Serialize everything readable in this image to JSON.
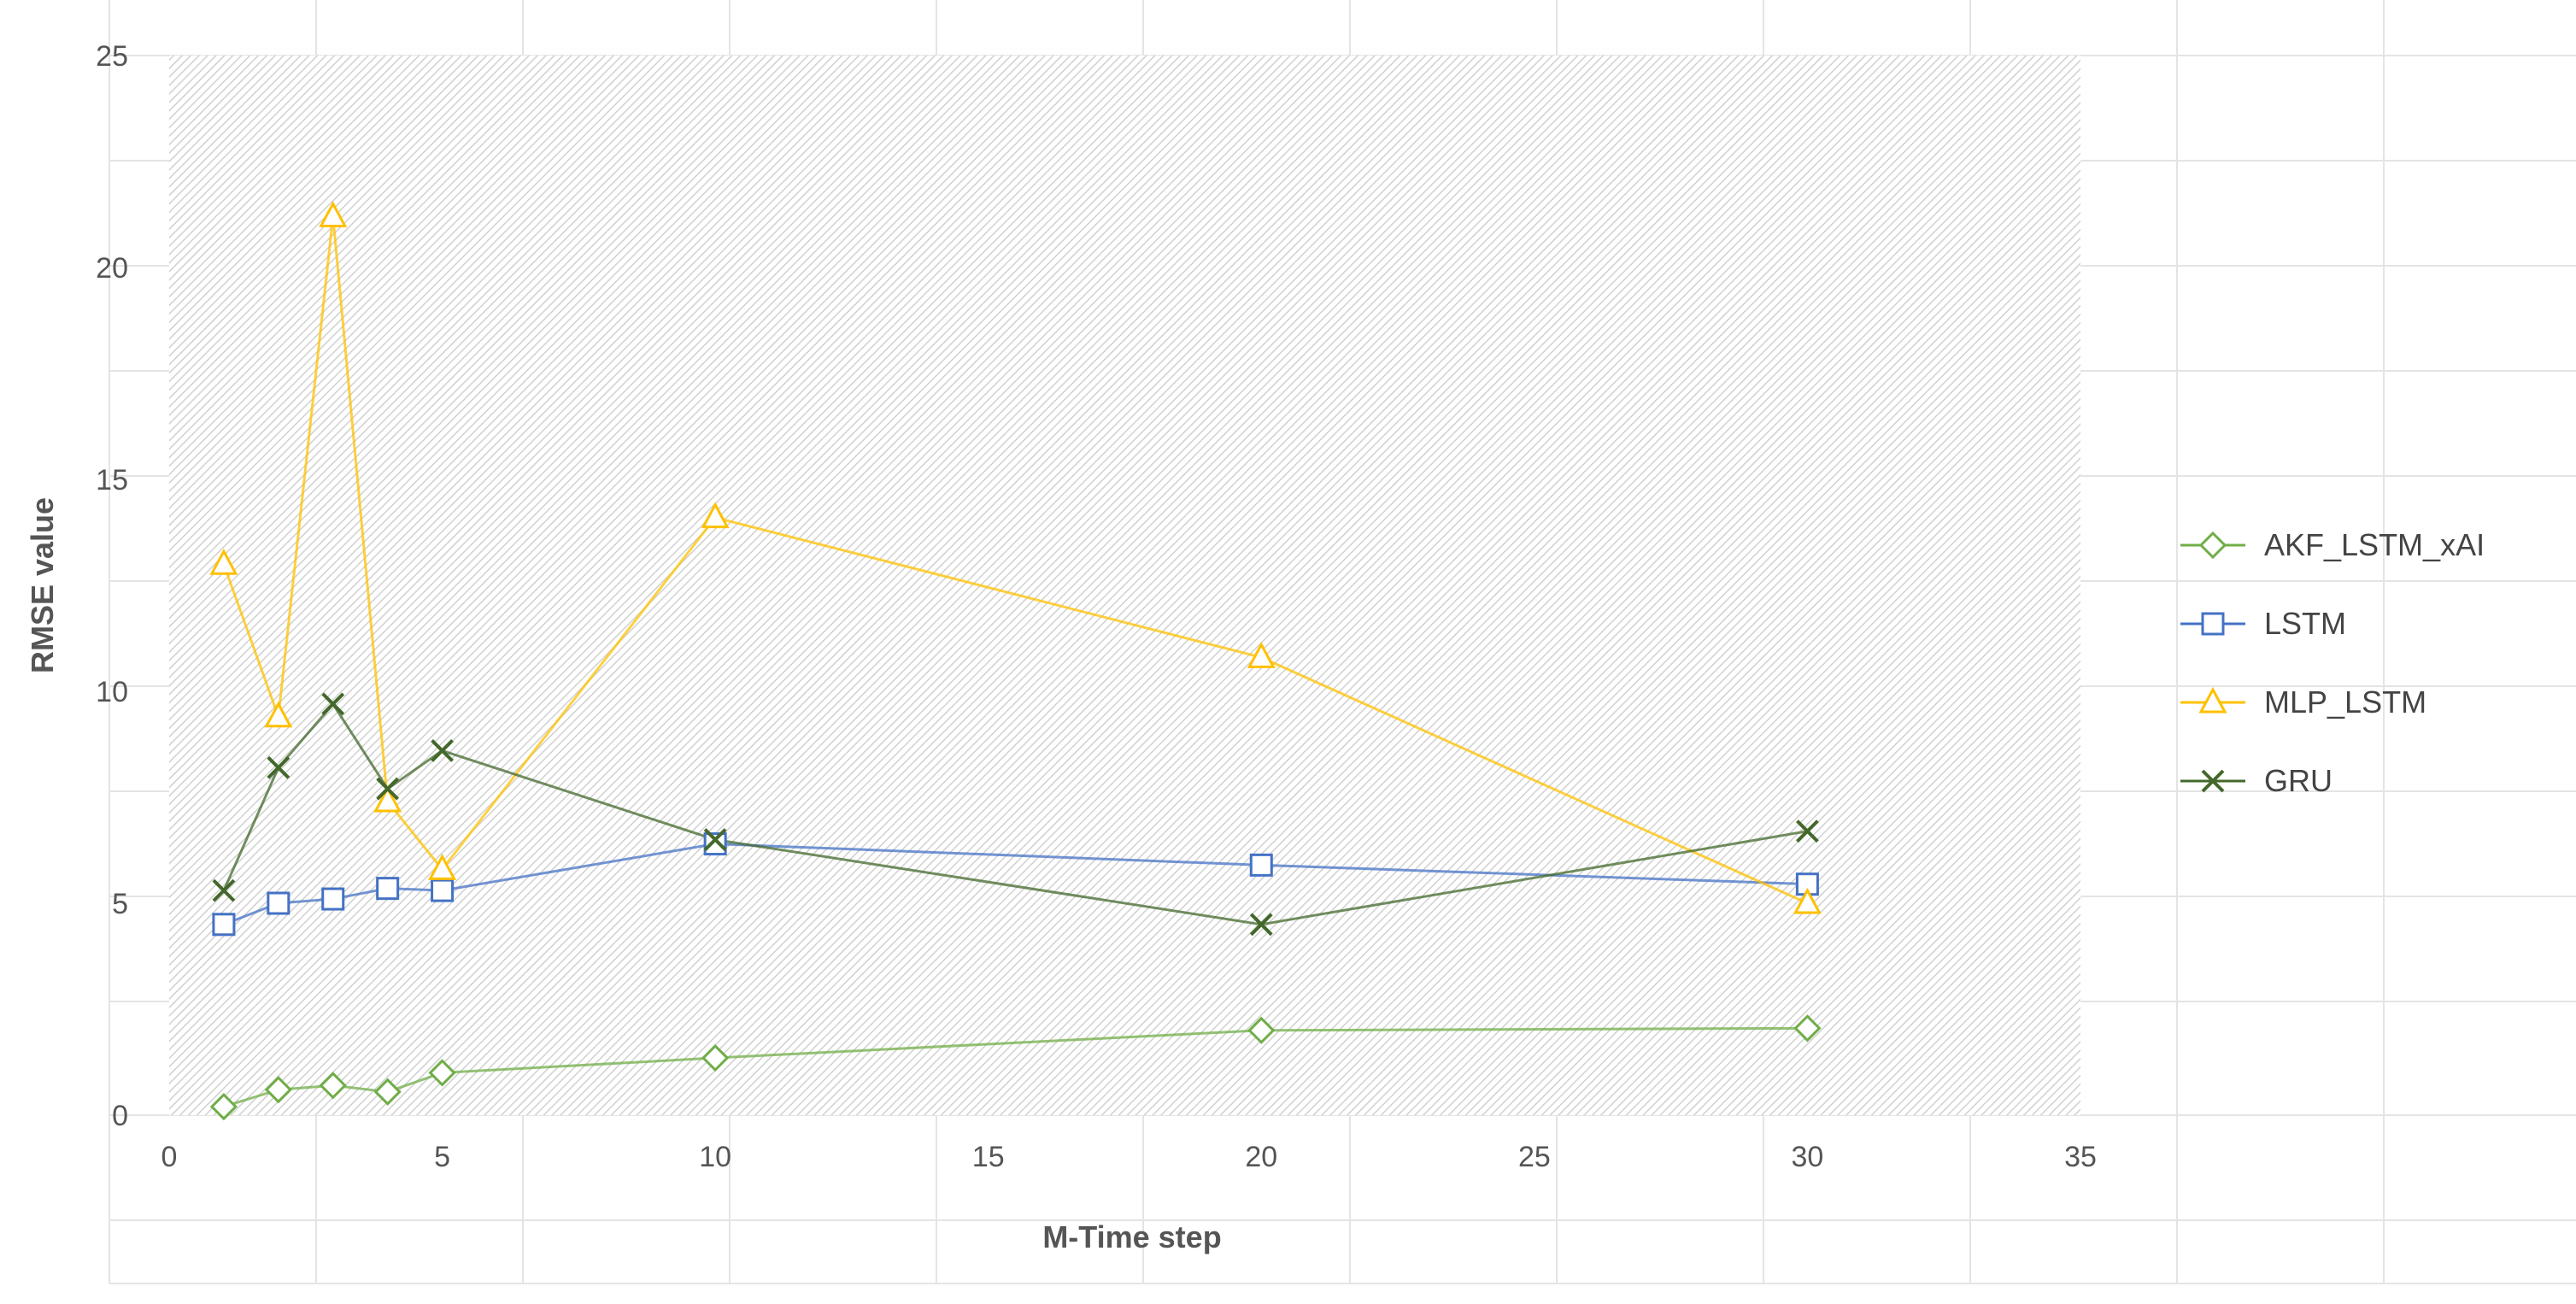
{
  "chart_data": {
    "type": "line",
    "title": "",
    "xlabel": "M-Time step",
    "ylabel": "RMSE value",
    "xlim": [
      0,
      35
    ],
    "ylim": [
      0,
      25
    ],
    "x_ticks": [
      0,
      5,
      10,
      15,
      20,
      25,
      30,
      35
    ],
    "y_ticks": [
      0,
      5,
      10,
      15,
      20,
      25
    ],
    "grid": true,
    "legend_position": "right",
    "x": [
      1,
      2,
      3,
      4,
      5,
      10,
      20,
      30
    ],
    "series": [
      {
        "name": "AKF_LSTM_xAI",
        "color": "#70ad47",
        "marker": "diamond",
        "values": [
          0.2,
          0.6,
          0.7,
          0.55,
          1.0,
          1.35,
          2.0,
          2.05
        ]
      },
      {
        "name": "LSTM",
        "color": "#4472c4",
        "marker": "square",
        "values": [
          4.5,
          5.0,
          5.1,
          5.35,
          5.3,
          6.4,
          5.9,
          5.45
        ]
      },
      {
        "name": "MLP_LSTM",
        "color": "#ffc000",
        "marker": "triangle",
        "values": [
          13.0,
          9.4,
          21.2,
          7.4,
          5.8,
          14.1,
          10.8,
          5.0
        ]
      },
      {
        "name": "GRU",
        "color": "#43682b",
        "marker": "x",
        "values": [
          5.3,
          8.2,
          9.7,
          7.7,
          8.6,
          6.5,
          4.5,
          6.7
        ]
      }
    ]
  }
}
